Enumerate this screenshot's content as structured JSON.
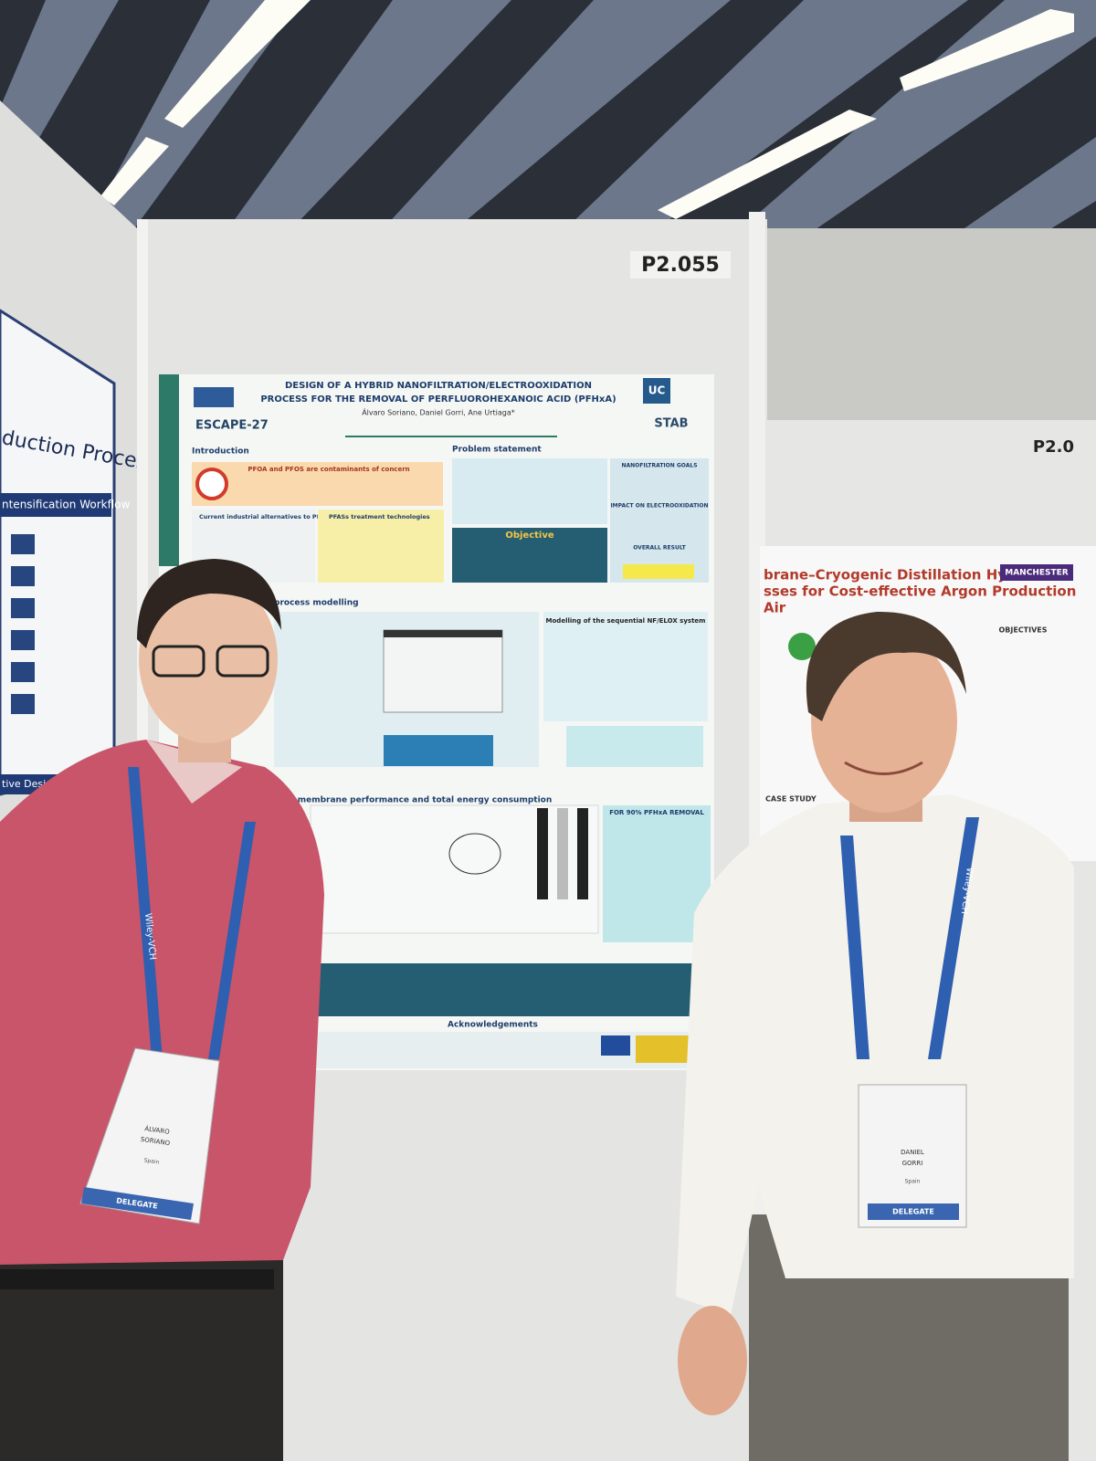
{
  "booth_number": "P2.055",
  "neighbor_booth_number": "P2.0",
  "poster": {
    "title_line1": "DESIGN OF A HYBRID NANOFILTRATION/ELECTROOXIDATION",
    "title_line2": "PROCESS FOR THE REMOVAL OF PERFLUOROHEXANOIC ACID (PFHxA)",
    "authors": "Álvaro Soriano, Daniel Gorri, Ane Urtiaga*",
    "logo_left": "ESCAPE-27",
    "logo_right": "UC",
    "logo_right2": "STAB",
    "introduction": "Introduction",
    "problem_statement": "Problem statement",
    "concern": "PFOA and PFOS are contaminants of concern",
    "alternatives": "Current industrial alternatives to PFOA and PFOS",
    "treatment": "PFASs treatment technologies",
    "objective": "Objective",
    "nf_goals": "NANOFILTRATION GOALS",
    "elox_impact": "IMPACT ON ELECTROOXIDATION",
    "overall": "OVERALL RESULT",
    "process_modelling": "process modelling",
    "modelling": "Modelling of the sequential NF/ELOX system",
    "membrane": "on membrane performance and total energy consumption",
    "removal": "FOR 90% PFHxA REMOVAL",
    "acknowledgements": "Acknowledgements"
  },
  "left_poster": {
    "title": "duction Process",
    "subtitle": "ntensification Workflow",
    "footer": "tive Designs"
  },
  "right_poster": {
    "title_line1": "brane–Cryogenic Distillation Hybrid",
    "title_line2": "sses for Cost-effective Argon Production",
    "title_line3": "Air",
    "logo": "MANCHESTER",
    "objectives": "OBJECTIVES",
    "case_study": "CASE STUDY"
  },
  "lanyard": "Wiley-VCH",
  "badges": [
    {
      "first": "ÁLVARO",
      "last": "SORIANO",
      "country": "Spain",
      "role": "DELEGATE"
    },
    {
      "first": "DANIEL",
      "last": "GORRI",
      "country": "Spain",
      "role": "DELEGATE"
    }
  ]
}
